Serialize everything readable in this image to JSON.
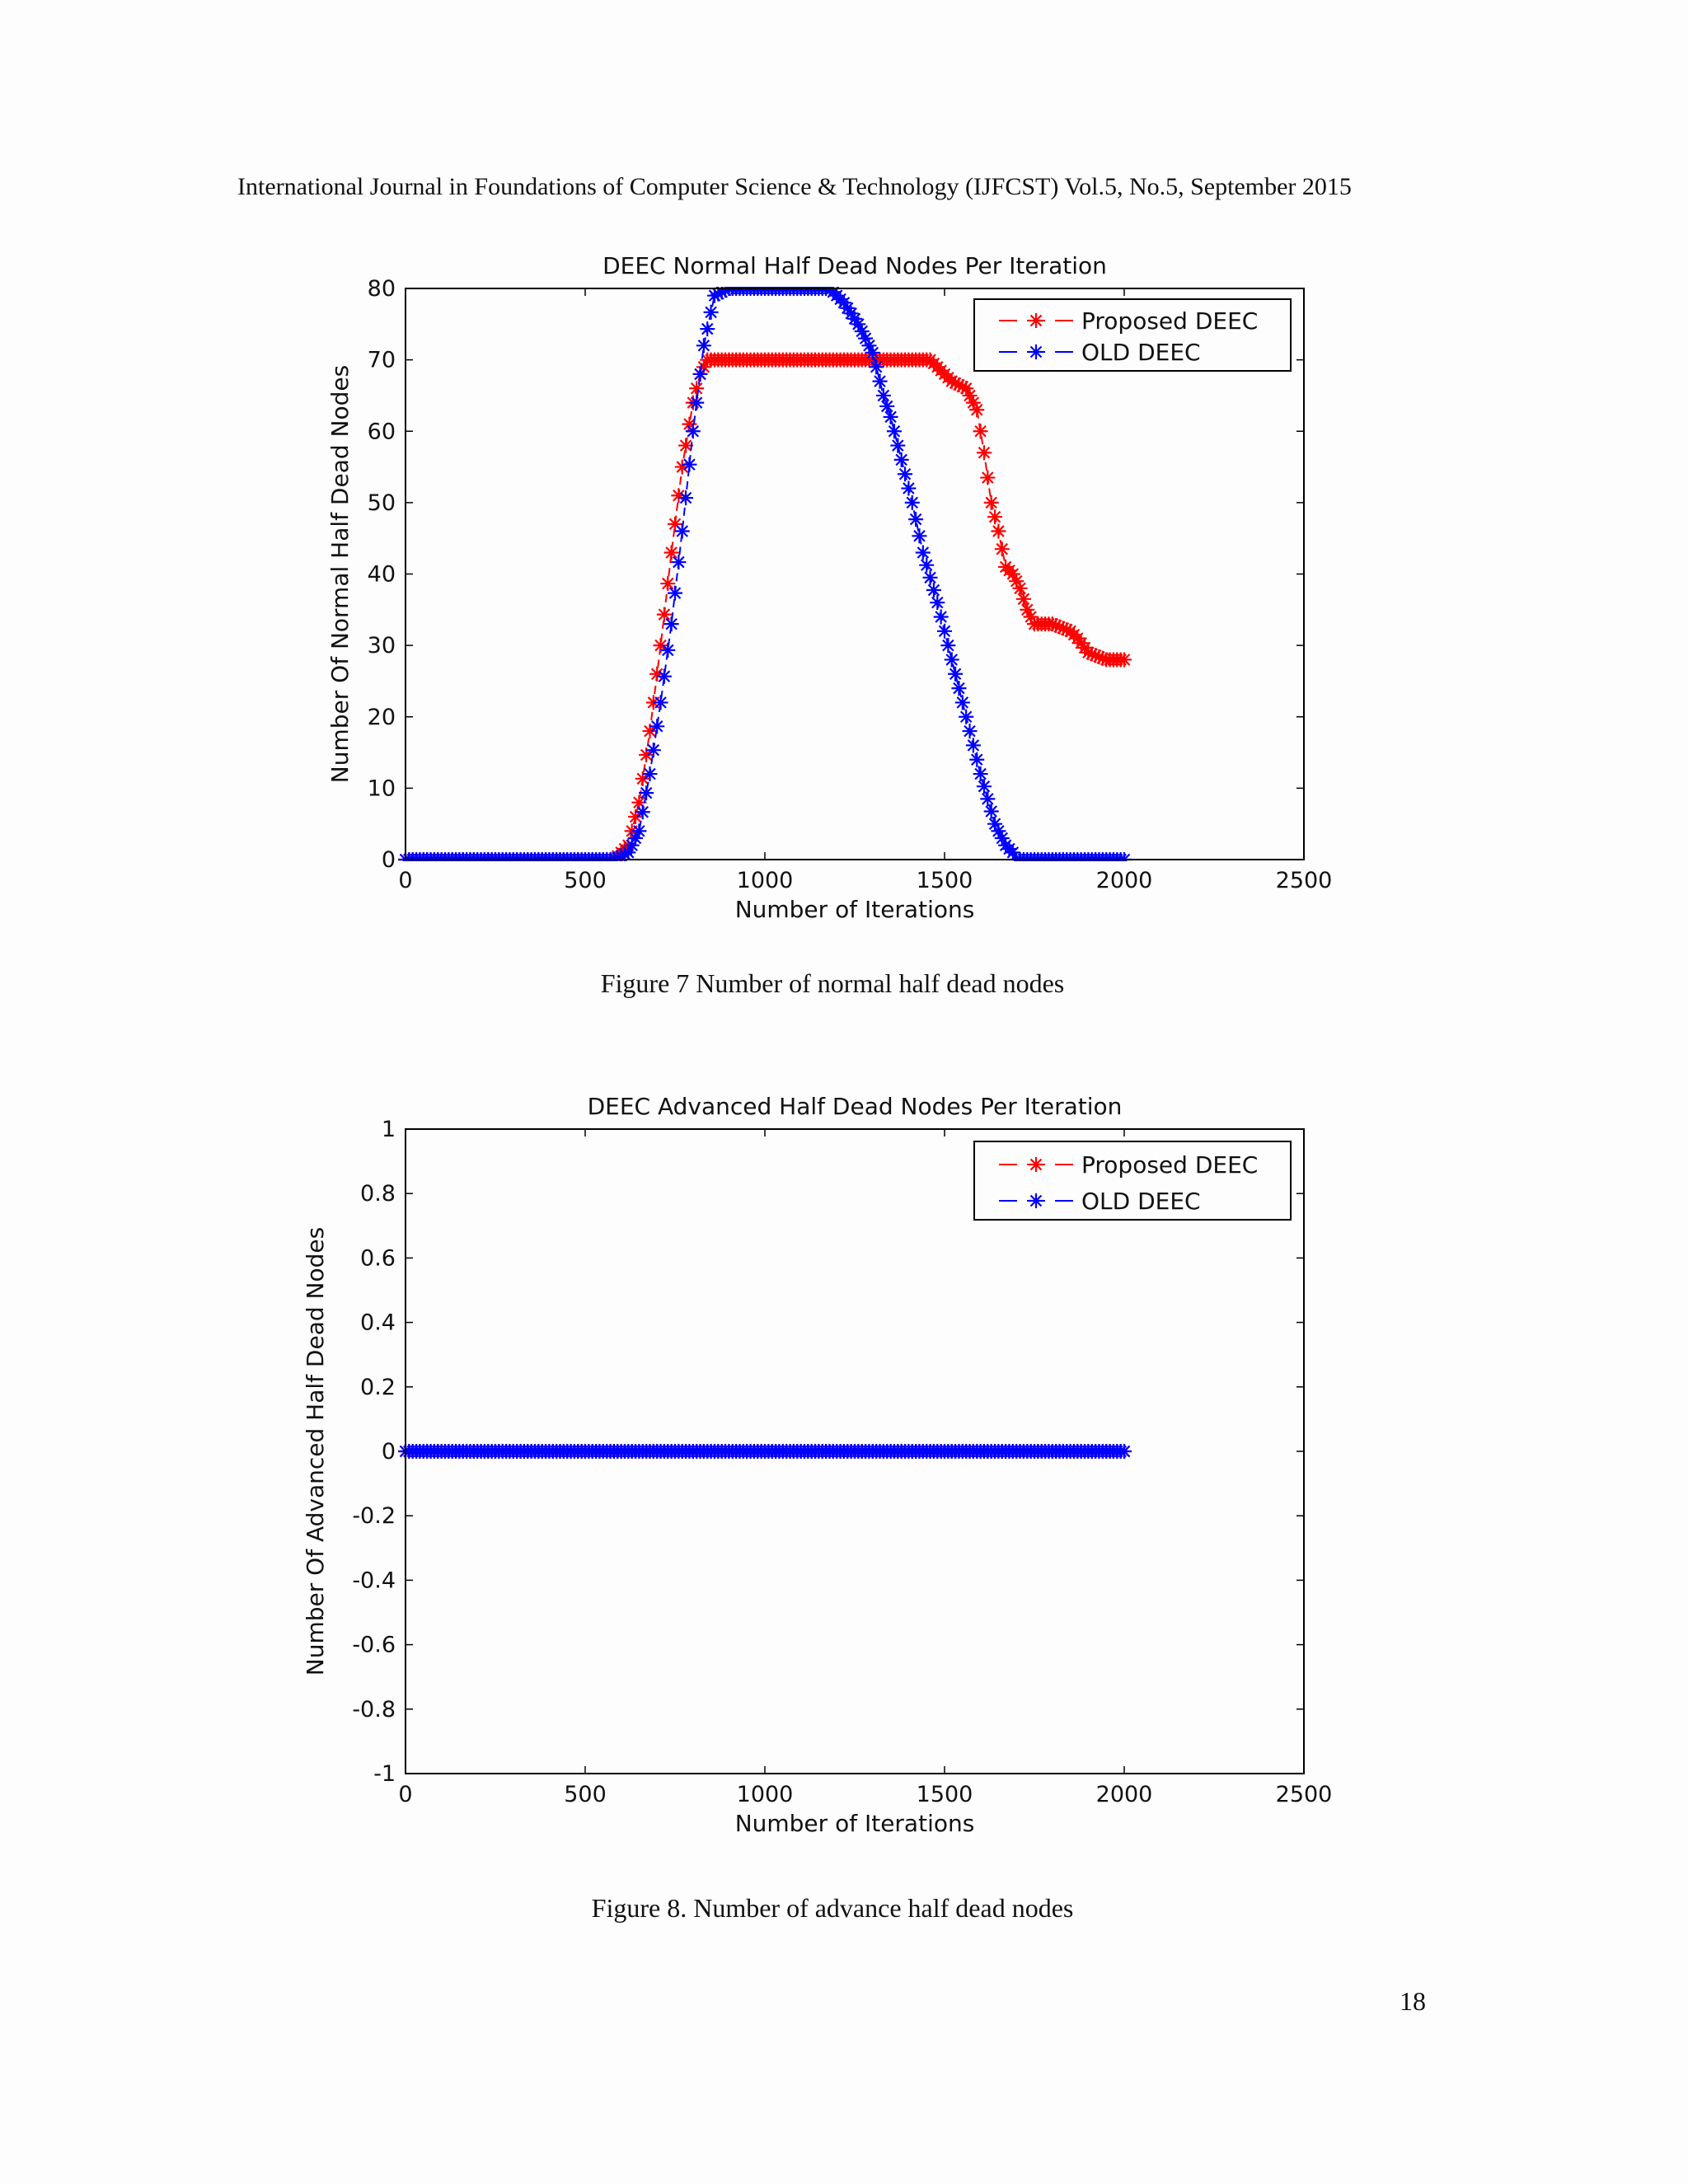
{
  "header": "International Journal in Foundations of Computer Science & Technology (IJFCST) Vol.5, No.5, September 2015",
  "page_number": "18",
  "colors": {
    "proposed": "#ff0000",
    "old": "#0000ff",
    "axis": "#000000"
  },
  "figures": [
    {
      "caption": "Figure 7 Number of normal half dead nodes"
    },
    {
      "caption": "Figure 8. Number of advance half dead nodes"
    }
  ],
  "chart_data": [
    {
      "type": "line",
      "title": "DEEC Normal Half Dead Nodes Per Iteration",
      "xlabel": "Number of Iterations",
      "ylabel": "Number Of Normal Half Dead Nodes",
      "xlim": [
        0,
        2500
      ],
      "ylim": [
        0,
        80
      ],
      "xticks": [
        0,
        500,
        1000,
        1500,
        2000,
        2500
      ],
      "yticks": [
        0,
        10,
        20,
        30,
        40,
        50,
        60,
        70,
        80
      ],
      "legend_position": "top-right",
      "marker": "*",
      "series": [
        {
          "name": "Proposed DEEC",
          "color": "#ff0000",
          "x": [
            0,
            580,
            620,
            650,
            680,
            710,
            740,
            770,
            800,
            820,
            840,
            1000,
            1200,
            1460,
            1480,
            1520,
            1560,
            1590,
            1610,
            1630,
            1650,
            1670,
            1690,
            1710,
            1730,
            1750,
            1800,
            1850,
            1870,
            1900,
            1950,
            2000
          ],
          "values": [
            0,
            0,
            2,
            8,
            18,
            30,
            43,
            55,
            64,
            68,
            70,
            70,
            70,
            70,
            69,
            67,
            66,
            63,
            57,
            50,
            46,
            41,
            40,
            38,
            35,
            33,
            33,
            32,
            31,
            29,
            28,
            28
          ]
        },
        {
          "name": "OLD DEEC",
          "color": "#0000ff",
          "x": [
            0,
            580,
            620,
            650,
            680,
            710,
            740,
            770,
            800,
            830,
            860,
            900,
            1000,
            1100,
            1180,
            1220,
            1260,
            1300,
            1330,
            1350,
            1380,
            1410,
            1440,
            1480,
            1520,
            1560,
            1600,
            1640,
            1670,
            1690,
            1700,
            1800,
            1900,
            2000
          ],
          "values": [
            0,
            0,
            1,
            4,
            12,
            22,
            33,
            46,
            60,
            72,
            79,
            80,
            80,
            80,
            80,
            78,
            75,
            71,
            65,
            62,
            56,
            50,
            43,
            36,
            28,
            20,
            12,
            5,
            2,
            1,
            0,
            0,
            0,
            0
          ]
        }
      ]
    },
    {
      "type": "line",
      "title": "DEEC Advanced Half Dead Nodes Per Iteration",
      "xlabel": "Number of Iterations",
      "ylabel": "Number Of Advanced Half Dead Nodes",
      "xlim": [
        0,
        2500
      ],
      "ylim": [
        -1,
        1
      ],
      "xticks": [
        0,
        500,
        1000,
        1500,
        2000,
        2500
      ],
      "yticks": [
        -1,
        -0.8,
        -0.6,
        -0.4,
        -0.2,
        0,
        0.2,
        0.4,
        0.6,
        0.8,
        1
      ],
      "legend_position": "top-right",
      "marker": "*",
      "series": [
        {
          "name": "Proposed DEEC",
          "color": "#ff0000",
          "x": [
            0,
            2000
          ],
          "values": [
            0,
            0
          ]
        },
        {
          "name": "OLD DEEC",
          "color": "#0000ff",
          "x": [
            0,
            2000
          ],
          "values": [
            0,
            0
          ]
        }
      ]
    }
  ]
}
